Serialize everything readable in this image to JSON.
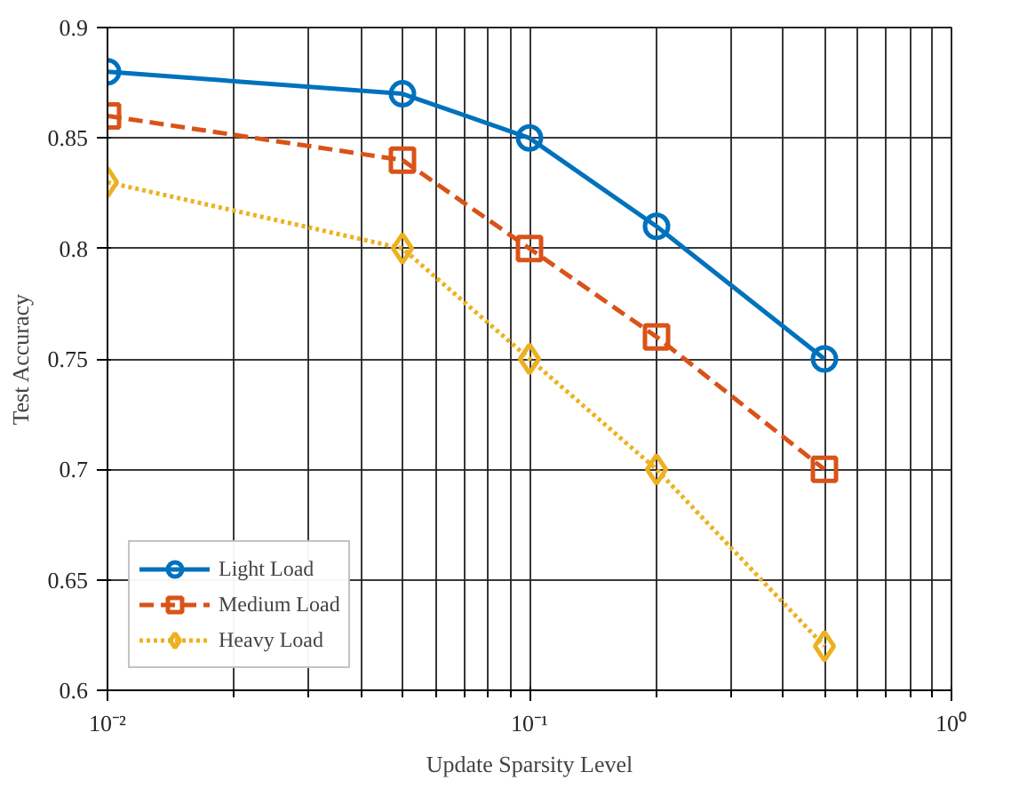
{
  "chart_data": {
    "type": "line",
    "xlabel": "Update Sparsity Level",
    "ylabel": "Test Accuracy",
    "x": [
      0.01,
      0.05,
      0.1,
      0.2,
      0.5
    ],
    "series": [
      {
        "name": "Light Load",
        "color": "#0072bd",
        "values": [
          0.88,
          0.87,
          0.85,
          0.81,
          0.75
        ],
        "marker": "circle",
        "line_style": "solid"
      },
      {
        "name": "Medium Load",
        "color": "#d95319",
        "values": [
          0.86,
          0.84,
          0.8,
          0.76,
          0.7
        ],
        "marker": "square",
        "line_style": "dashed"
      },
      {
        "name": "Heavy Load",
        "color": "#edb120",
        "values": [
          0.83,
          0.8,
          0.75,
          0.7,
          0.62
        ],
        "marker": "diamond",
        "line_style": "dotted"
      }
    ],
    "log": "x",
    "xlim": [
      0.01,
      1
    ],
    "ylim": [
      0.6,
      0.9
    ],
    "xticks": [
      {
        "value": 0.01,
        "label": "10⁻²"
      },
      {
        "value": 0.1,
        "label": "10⁻¹"
      },
      {
        "value": 1,
        "label": "10⁰"
      }
    ],
    "yticks": [
      0.6,
      0.65,
      0.7,
      0.75,
      0.8,
      0.85,
      0.9
    ],
    "grid": true,
    "legend": "bottom left"
  }
}
